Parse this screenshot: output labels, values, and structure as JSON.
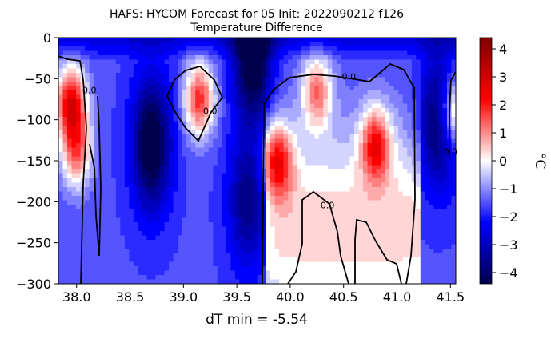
{
  "chart_data": {
    "type": "heatmap",
    "title_line1": "HAFS: HYCOM Forecast for 05 Init: 2022090212 f126",
    "title_line2": "Temperature Difference",
    "xlabel": "dT min = -5.54",
    "ylabel": "",
    "colorbar_label": "°C",
    "xlim": [
      37.83,
      41.55
    ],
    "ylim": [
      -300,
      0
    ],
    "x_ticks": [
      38.0,
      38.5,
      39.0,
      39.5,
      40.0,
      40.5,
      41.0,
      41.5
    ],
    "x_tick_labels": [
      "38.0",
      "38.5",
      "39.0",
      "39.5",
      "40.0",
      "40.5",
      "41.0",
      "41.5"
    ],
    "y_ticks": [
      0,
      -50,
      -100,
      -150,
      -200,
      -250,
      -300
    ],
    "y_tick_labels": [
      "0",
      "−50",
      "−100",
      "−150",
      "−200",
      "−250",
      "−300"
    ],
    "colorbar_range": [
      -4.4,
      4.4
    ],
    "colorbar_ticks": [
      4,
      3,
      2,
      1,
      0,
      -1,
      -2,
      -3,
      -4
    ],
    "colorbar_tick_labels": [
      "4",
      "3",
      "2",
      "1",
      "0",
      "−1",
      "−2",
      "−3",
      "−4"
    ],
    "colormap": "seismic",
    "colormap_stops": [
      "#00004c",
      "#0000ff",
      "#ffffff",
      "#ff0000",
      "#7f0000"
    ],
    "contour_level": 0.0,
    "contour_labels": [
      {
        "text": "0.0",
        "x": 38.12,
        "y": -65
      },
      {
        "text": "0.0",
        "x": 39.25,
        "y": -90
      },
      {
        "text": "0.0",
        "x": 40.55,
        "y": -48
      },
      {
        "text": "0.0",
        "x": 40.35,
        "y": -205
      },
      {
        "text": "0.0",
        "x": 41.5,
        "y": -140
      }
    ],
    "features": [
      {
        "type": "warm",
        "x": 37.95,
        "y": -80,
        "peak": 3.5
      },
      {
        "type": "warm",
        "x": 38.0,
        "y": -140,
        "peak": 2.2
      },
      {
        "type": "warm",
        "x": 39.15,
        "y": -75,
        "peak": 2.8
      },
      {
        "type": "warm",
        "x": 39.88,
        "y": -150,
        "peak": 2.4
      },
      {
        "type": "warm",
        "x": 40.25,
        "y": -65,
        "peak": 2.0
      },
      {
        "type": "warm",
        "x": 40.8,
        "y": -130,
        "peak": 2.5
      },
      {
        "type": "warm",
        "x": 41.53,
        "y": -90,
        "peak": 2.5
      },
      {
        "type": "cold",
        "x": 38.7,
        "y": -130,
        "peak": -4.0
      },
      {
        "type": "cold",
        "x": 39.65,
        "y": -20,
        "peak": -4.2
      },
      {
        "type": "cold",
        "x": 41.4,
        "y": -100,
        "peak": -3.5
      },
      {
        "type": "cold",
        "x": 39.6,
        "y": -200,
        "peak": -2.8
      }
    ]
  }
}
